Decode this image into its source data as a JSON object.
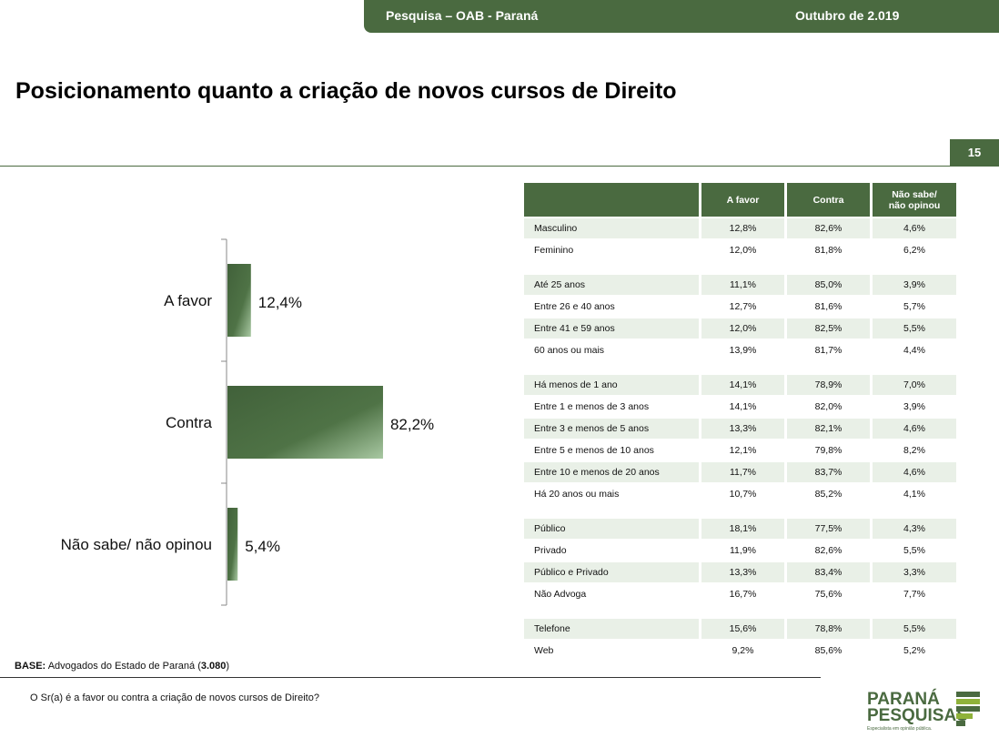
{
  "header": {
    "left": "Pesquisa – OAB - Paraná",
    "right": "Outubro de 2.019"
  },
  "title": "Posicionamento quanto a criação de novos cursos de Direito",
  "page_number": "15",
  "colors": {
    "brand": "#4a6a40",
    "bar_dark": "#41613a",
    "bar_light": "#9fc09a",
    "row_band": "#e9f0e7"
  },
  "chart_data": {
    "type": "bar",
    "orientation": "horizontal",
    "categories": [
      "A favor",
      "Contra",
      "Não sabe/ não opinou"
    ],
    "values": [
      12.4,
      82.2,
      5.4
    ],
    "value_labels": [
      "12,4%",
      "82,2%",
      "5,4%"
    ],
    "xlim": [
      0,
      100
    ]
  },
  "table": {
    "columns": [
      "",
      "A favor",
      "Contra",
      "Não sabe/ não opinou"
    ],
    "groups": [
      [
        [
          "Masculino",
          "12,8%",
          "82,6%",
          "4,6%"
        ],
        [
          "Feminino",
          "12,0%",
          "81,8%",
          "6,2%"
        ]
      ],
      [
        [
          "Até 25 anos",
          "11,1%",
          "85,0%",
          "3,9%"
        ],
        [
          "Entre 26 e 40 anos",
          "12,7%",
          "81,6%",
          "5,7%"
        ],
        [
          "Entre 41 e 59 anos",
          "12,0%",
          "82,5%",
          "5,5%"
        ],
        [
          "60 anos ou mais",
          "13,9%",
          "81,7%",
          "4,4%"
        ]
      ],
      [
        [
          "Há menos de 1 ano",
          "14,1%",
          "78,9%",
          "7,0%"
        ],
        [
          "Entre 1 e menos de 3 anos",
          "14,1%",
          "82,0%",
          "3,9%"
        ],
        [
          "Entre 3 e menos de 5 anos",
          "13,3%",
          "82,1%",
          "4,6%"
        ],
        [
          "Entre 5 e menos de 10 anos",
          "12,1%",
          "79,8%",
          "8,2%"
        ],
        [
          "Entre 10 e menos de 20 anos",
          "11,7%",
          "83,7%",
          "4,6%"
        ],
        [
          "Há 20 anos ou mais",
          "10,7%",
          "85,2%",
          "4,1%"
        ]
      ],
      [
        [
          "Público",
          "18,1%",
          "77,5%",
          "4,3%"
        ],
        [
          "Privado",
          "11,9%",
          "82,6%",
          "5,5%"
        ],
        [
          "Público e Privado",
          "13,3%",
          "83,4%",
          "3,3%"
        ],
        [
          "Não Advoga",
          "16,7%",
          "75,6%",
          "7,7%"
        ]
      ],
      [
        [
          "Telefone",
          "15,6%",
          "78,8%",
          "5,5%"
        ],
        [
          "Web",
          "9,2%",
          "85,6%",
          "5,2%"
        ]
      ]
    ]
  },
  "footer": {
    "base_label": "BASE:",
    "base_text": "Advogados do Estado de Paraná (",
    "base_count": "3.080",
    "base_close": ")",
    "question": "O Sr(a) é a favor ou contra a criação de novos cursos de Direito?"
  },
  "logo": {
    "line1": "PARANÁ",
    "line2": "PESQUISAS",
    "tagline": "Especialista em opinião pública."
  }
}
